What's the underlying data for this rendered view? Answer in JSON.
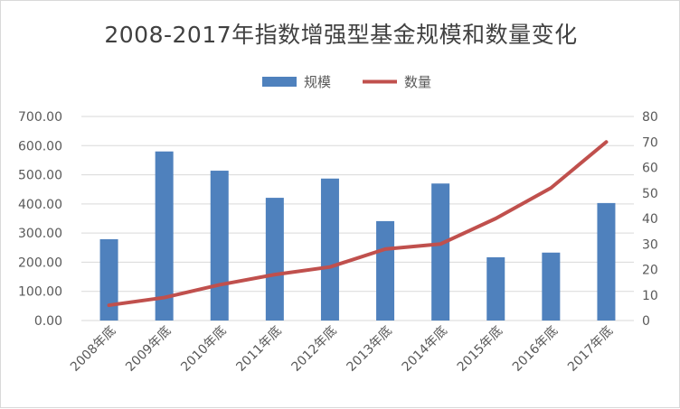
{
  "title": "2008-2017年指数增强型基金规模和数量变化",
  "legend": {
    "bar_label": "规模",
    "line_label": "数量"
  },
  "colors": {
    "bar": "#4f81bd",
    "line": "#c0504d",
    "grid": "#d9d9d9",
    "text": "#595959"
  },
  "chart_data": {
    "type": "bar",
    "title": "2008-2017年指数增强型基金规模和数量变化",
    "categories": [
      "2008年底",
      "2009年底",
      "2010年底",
      "2011年底",
      "2012年底",
      "2013年底",
      "2014年底",
      "2015年底",
      "2016年底",
      "2017年底"
    ],
    "series": [
      {
        "name": "规模",
        "type": "bar",
        "axis": "left",
        "values": [
          279,
          580,
          514,
          421,
          487,
          341,
          470,
          217,
          233,
          403
        ]
      },
      {
        "name": "数量",
        "type": "line",
        "axis": "right",
        "values": [
          6,
          9,
          14,
          18,
          21,
          28,
          30,
          40,
          52,
          70
        ]
      }
    ],
    "y_left": {
      "ylim": [
        0,
        700
      ],
      "ticks": [
        "0.00",
        "100.00",
        "200.00",
        "300.00",
        "400.00",
        "500.00",
        "600.00",
        "700.00"
      ]
    },
    "y_right": {
      "ylim": [
        0,
        80
      ],
      "ticks": [
        "0",
        "10",
        "20",
        "30",
        "40",
        "50",
        "60",
        "70",
        "80"
      ]
    },
    "grid": true,
    "legend_position": "top"
  }
}
